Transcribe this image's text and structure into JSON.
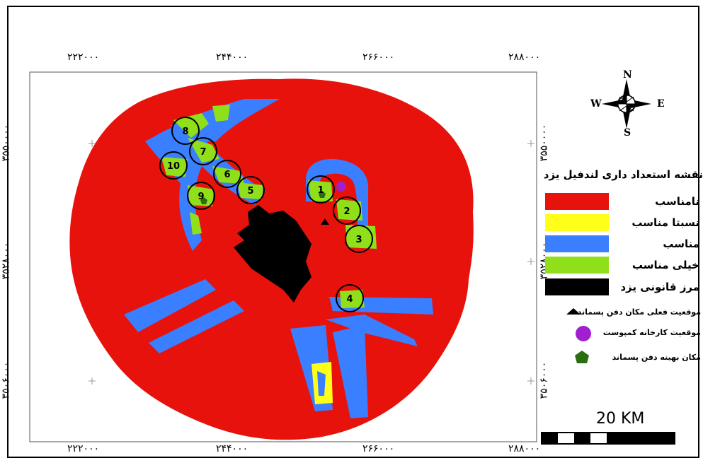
{
  "title": "نقشه استعداد داری لندفیل یزد",
  "coords": {
    "top": [
      "۲۲۲۰۰۰",
      "۲۴۴۰۰۰",
      "۲۶۶۰۰۰",
      "۲۸۸۰۰۰"
    ],
    "bottom": [
      "۲۲۲۰۰۰",
      "۲۴۴۰۰۰",
      "۲۶۶۰۰۰",
      "۲۸۸۰۰۰"
    ],
    "left": [
      "۳۵۵۰۰۰۰",
      "۳۵۲۸۰۰۰",
      "۳۵۰۶۰۰۰"
    ],
    "right": [
      "۳۵۵۰۰۰۰",
      "۳۵۲۸۰۰۰",
      "۳۵۰۶۰۰۰"
    ]
  },
  "compass": {
    "n": "N",
    "s": "S",
    "e": "E",
    "w": "W"
  },
  "legend": {
    "classes": [
      {
        "label": "نامناسب",
        "color": "#e8120c"
      },
      {
        "label": "نسبتا مناسب",
        "color": "#ffff1a"
      },
      {
        "label": "مناسب",
        "color": "#3a7fff"
      },
      {
        "label": "خیلی مناسب",
        "color": "#8fe01a"
      },
      {
        "label": "مرز قانونی یزد",
        "color": "#000000"
      }
    ],
    "symbols": [
      {
        "label": "موقعیت فعلی مکان دفن پسماند",
        "icon": "triangle-icon",
        "color": "#000000"
      },
      {
        "label": "موقعیت کارخانه کمپوست",
        "icon": "circle-icon",
        "color": "#a020d0"
      },
      {
        "label": "مکان بهینه دفن پسماند",
        "icon": "pentagon-icon",
        "color": "#2a6e12"
      }
    ]
  },
  "sites": [
    "1",
    "2",
    "3",
    "4",
    "5",
    "6",
    "7",
    "8",
    "9",
    "10"
  ],
  "scale": {
    "label": "20 KM"
  }
}
